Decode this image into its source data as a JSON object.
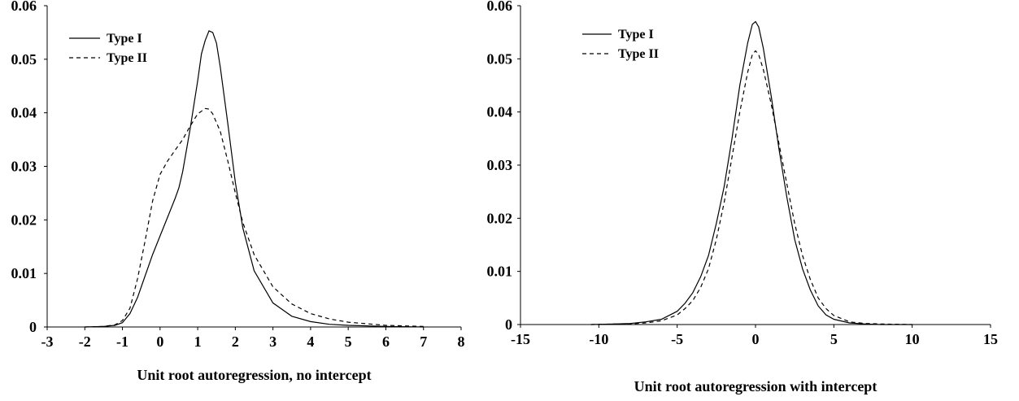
{
  "chart_data": [
    {
      "type": "line",
      "title": "",
      "xlabel": "Unit root autoregression, no intercept",
      "ylabel": "",
      "xlim": [
        -3,
        8
      ],
      "ylim": [
        0,
        0.06
      ],
      "xticks": [
        "-3",
        "-2",
        "-1",
        "0",
        "1",
        "2",
        "3",
        "4",
        "5",
        "6",
        "7",
        "8"
      ],
      "yticks": [
        "0",
        "0.01",
        "0.02",
        "0.03",
        "0.04",
        "0.05",
        "0.06"
      ],
      "legend_position": "top-left",
      "grid": false,
      "series": [
        {
          "name": "Type I",
          "style": "solid",
          "x": [
            -2,
            -1.5,
            -1.2,
            -1,
            -0.8,
            -0.6,
            -0.4,
            -0.2,
            0,
            0.2,
            0.4,
            0.5,
            0.6,
            0.8,
            1,
            1.1,
            1.2,
            1.3,
            1.4,
            1.5,
            1.6,
            1.8,
            2,
            2.2,
            2.5,
            3,
            3.5,
            4,
            4.5,
            5,
            6,
            7
          ],
          "y": [
            0,
            0.0001,
            0.0003,
            0.0008,
            0.0025,
            0.0055,
            0.0095,
            0.0135,
            0.017,
            0.0205,
            0.024,
            0.026,
            0.029,
            0.037,
            0.046,
            0.051,
            0.0535,
            0.0553,
            0.055,
            0.053,
            0.0485,
            0.038,
            0.027,
            0.0185,
            0.0105,
            0.0045,
            0.002,
            0.001,
            0.0005,
            0.0003,
            0.0001,
            0
          ]
        },
        {
          "name": "Type II",
          "style": "dashed",
          "x": [
            -2,
            -1.5,
            -1.2,
            -1,
            -0.8,
            -0.6,
            -0.4,
            -0.2,
            0,
            0.2,
            0.4,
            0.6,
            0.8,
            1,
            1.2,
            1.3,
            1.4,
            1.6,
            1.8,
            2,
            2.2,
            2.5,
            3,
            3.5,
            4,
            4.5,
            5,
            6,
            7
          ],
          "y": [
            0,
            0.0001,
            0.0004,
            0.0012,
            0.0035,
            0.009,
            0.016,
            0.0235,
            0.0285,
            0.031,
            0.033,
            0.035,
            0.0375,
            0.0398,
            0.0408,
            0.0407,
            0.0398,
            0.0365,
            0.031,
            0.025,
            0.0195,
            0.0135,
            0.0075,
            0.0043,
            0.0025,
            0.0015,
            0.0009,
            0.0003,
            0.0001
          ]
        }
      ]
    },
    {
      "type": "line",
      "title": "",
      "xlabel": "Unit root autoregression with intercept",
      "ylabel": "",
      "xlim": [
        -15,
        15
      ],
      "ylim": [
        0,
        0.06
      ],
      "xticks": [
        "-15",
        "-10",
        "-5",
        "0",
        "5",
        "10",
        "15"
      ],
      "yticks": [
        "0",
        "0.01",
        "0.02",
        "0.03",
        "0.04",
        "0.05",
        "0.06"
      ],
      "legend_position": "top-left",
      "grid": false,
      "series": [
        {
          "name": "Type I",
          "style": "solid",
          "x": [
            -10.5,
            -9,
            -8,
            -7,
            -6,
            -5,
            -4.5,
            -4,
            -3.5,
            -3,
            -2.5,
            -2,
            -1.5,
            -1,
            -0.5,
            -0.2,
            0,
            0.2,
            0.5,
            1,
            1.5,
            2,
            2.5,
            3,
            3.5,
            4,
            4.5,
            5,
            6,
            7,
            8,
            10
          ],
          "y": [
            0,
            0.0001,
            0.0002,
            0.0005,
            0.001,
            0.0025,
            0.004,
            0.006,
            0.009,
            0.013,
            0.019,
            0.026,
            0.035,
            0.045,
            0.053,
            0.0565,
            0.057,
            0.056,
            0.052,
            0.043,
            0.033,
            0.024,
            0.016,
            0.0105,
            0.0065,
            0.0035,
            0.0018,
            0.001,
            0.0003,
            0.0001,
            0,
            0
          ]
        },
        {
          "name": "Type II",
          "style": "dashed",
          "x": [
            -10.5,
            -9,
            -8,
            -7,
            -6,
            -5,
            -4.5,
            -4,
            -3.5,
            -3,
            -2.5,
            -2,
            -1.5,
            -1,
            -0.5,
            -0.2,
            0,
            0.2,
            0.5,
            1,
            1.5,
            2,
            2.5,
            3,
            3.5,
            4,
            4.5,
            5,
            6,
            7,
            8,
            10
          ],
          "y": [
            0,
            0.0001,
            0.0001,
            0.0003,
            0.0007,
            0.0018,
            0.003,
            0.0045,
            0.007,
            0.0105,
            0.016,
            0.023,
            0.0315,
            0.04,
            0.0475,
            0.0508,
            0.0515,
            0.0508,
            0.048,
            0.0415,
            0.034,
            0.0265,
            0.019,
            0.013,
            0.0085,
            0.005,
            0.003,
            0.0017,
            0.0005,
            0.0002,
            0.0001,
            0
          ]
        }
      ]
    }
  ]
}
